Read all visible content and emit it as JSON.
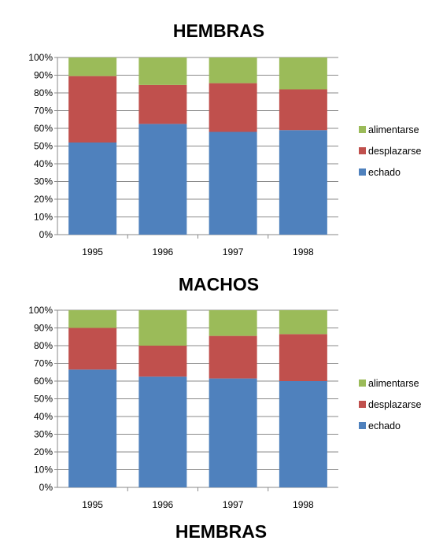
{
  "chart_data": [
    {
      "type": "bar",
      "stacked": true,
      "percent": true,
      "title": "HEMBRAS",
      "xlabel": "",
      "ylabel": "",
      "ylim": [
        0,
        100
      ],
      "categories": [
        "1995",
        "1996",
        "1997",
        "1998"
      ],
      "yticks": [
        "0%",
        "10%",
        "20%",
        "30%",
        "40%",
        "50%",
        "60%",
        "70%",
        "80%",
        "90%",
        "100%"
      ],
      "series": [
        {
          "name": "echado",
          "color": "#4F81BD",
          "values": [
            52,
            62.5,
            58,
            59
          ]
        },
        {
          "name": "desplazarse",
          "color": "#C0504D",
          "values": [
            37.5,
            22,
            27.5,
            23
          ]
        },
        {
          "name": "alimentarse",
          "color": "#9BBB59",
          "values": [
            10.5,
            15.5,
            14.5,
            18
          ]
        }
      ],
      "legend_position": "right",
      "legend_order": [
        "alimentarse",
        "desplazarse",
        "echado"
      ],
      "grid": true
    },
    {
      "type": "bar",
      "stacked": true,
      "percent": true,
      "title": "MACHOS",
      "xlabel": "",
      "ylabel": "",
      "ylim": [
        0,
        100
      ],
      "categories": [
        "1995",
        "1996",
        "1997",
        "1998"
      ],
      "yticks": [
        "0%",
        "10%",
        "20%",
        "30%",
        "40%",
        "50%",
        "60%",
        "70%",
        "80%",
        "90%",
        "100%"
      ],
      "series": [
        {
          "name": "echado",
          "color": "#4F81BD",
          "values": [
            66.5,
            62.5,
            61.5,
            60
          ]
        },
        {
          "name": "desplazarse",
          "color": "#C0504D",
          "values": [
            23.5,
            17.5,
            24,
            26.5
          ]
        },
        {
          "name": "alimentarse",
          "color": "#9BBB59",
          "values": [
            10,
            20,
            14.5,
            13.5
          ]
        }
      ],
      "legend_position": "right",
      "legend_order": [
        "alimentarse",
        "desplazarse",
        "echado"
      ],
      "grid": true
    }
  ],
  "footer_title": "HEMBRAS"
}
